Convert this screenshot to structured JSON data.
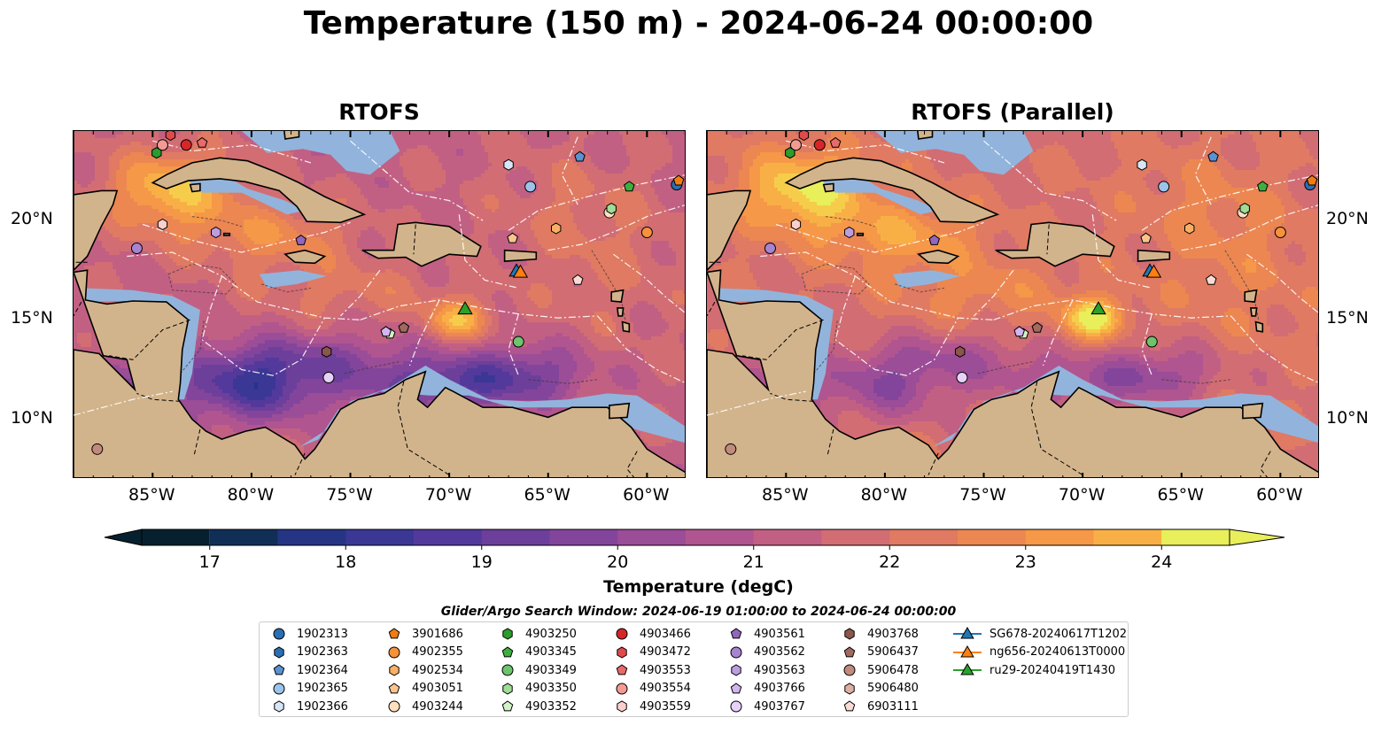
{
  "title": "Temperature (150 m) - 2024-06-24 00:00:00",
  "panels": [
    {
      "title": "RTOFS",
      "variant": "rtofs"
    },
    {
      "title": "RTOFS (Parallel)",
      "variant": "parallel"
    }
  ],
  "map": {
    "lon_range": [
      -89,
      -58
    ],
    "lat_range": [
      7,
      24.5
    ],
    "lon_ticks": [
      {
        "value": -85,
        "label": "85°W"
      },
      {
        "value": -80,
        "label": "80°W"
      },
      {
        "value": -75,
        "label": "75°W"
      },
      {
        "value": -70,
        "label": "70°W"
      },
      {
        "value": -65,
        "label": "65°W"
      },
      {
        "value": -60,
        "label": "60°W"
      }
    ],
    "lat_ticks": [
      {
        "value": 20,
        "label": "20°N"
      },
      {
        "value": 15,
        "label": "15°N"
      },
      {
        "value": 10,
        "label": "10°N"
      }
    ],
    "land_color": "#d2b48c",
    "shelf_color": "#92b4dc"
  },
  "colorbar": {
    "label": "Temperature (degC)",
    "min": 16.5,
    "max": 24.5,
    "step": 0.5,
    "tick_values": [
      17,
      18,
      19,
      20,
      21,
      22,
      23,
      24
    ],
    "tick_labels": [
      "17",
      "18",
      "19",
      "20",
      "21",
      "22",
      "23",
      "24"
    ],
    "colors": [
      "#07202f",
      "#112f56",
      "#253584",
      "#3a3795",
      "#53399b",
      "#6c3f9b",
      "#83459b",
      "#9b4d97",
      "#b0558f",
      "#c26083",
      "#d26d74",
      "#e07a62",
      "#ec8752",
      "#f59848",
      "#f8b046",
      "#f6cd4b",
      "#e8ef5a"
    ]
  },
  "search_window": "Glider/Argo Search Window: 2024-06-19 01:00:00 to 2024-06-24 00:00:00",
  "legend": [
    {
      "label": "1902313",
      "marker": "circle",
      "color": "#2a6fb2"
    },
    {
      "label": "1902363",
      "marker": "hexagon",
      "color": "#2a6fb2"
    },
    {
      "label": "1902364",
      "marker": "pentagon",
      "color": "#5a92d2"
    },
    {
      "label": "1902365",
      "marker": "circle",
      "color": "#9cc4ea"
    },
    {
      "label": "1902366",
      "marker": "hexagon",
      "color": "#d6e6f6"
    },
    {
      "label": "3901686",
      "marker": "pentagon",
      "color": "#f07d12"
    },
    {
      "label": "4902355",
      "marker": "circle",
      "color": "#f6923a"
    },
    {
      "label": "4902534",
      "marker": "hexagon",
      "color": "#f8b064"
    },
    {
      "label": "4903051",
      "marker": "pentagon",
      "color": "#fbc48e"
    },
    {
      "label": "4903244",
      "marker": "circle",
      "color": "#fde0c0"
    },
    {
      "label": "4903250",
      "marker": "hexagon",
      "color": "#2c9c2c"
    },
    {
      "label": "4903345",
      "marker": "pentagon",
      "color": "#3fae3f"
    },
    {
      "label": "4903349",
      "marker": "circle",
      "color": "#6cc46c"
    },
    {
      "label": "4903350",
      "marker": "hexagon",
      "color": "#a0dc96"
    },
    {
      "label": "4903352",
      "marker": "pentagon",
      "color": "#d2f2c8"
    },
    {
      "label": "4903466",
      "marker": "circle",
      "color": "#d62728"
    },
    {
      "label": "4903472",
      "marker": "hexagon",
      "color": "#e04a4a"
    },
    {
      "label": "4903553",
      "marker": "pentagon",
      "color": "#ea6a6a"
    },
    {
      "label": "4903554",
      "marker": "circle",
      "color": "#f49a94"
    },
    {
      "label": "4903559",
      "marker": "hexagon",
      "color": "#fbd0cc"
    },
    {
      "label": "4903561",
      "marker": "pentagon",
      "color": "#9266bd"
    },
    {
      "label": "4903562",
      "marker": "circle",
      "color": "#a784d0"
    },
    {
      "label": "4903563",
      "marker": "hexagon",
      "color": "#bc9ee0"
    },
    {
      "label": "4903766",
      "marker": "pentagon",
      "color": "#d2b6ee"
    },
    {
      "label": "4903767",
      "marker": "circle",
      "color": "#e6d2f8"
    },
    {
      "label": "4903768",
      "marker": "hexagon",
      "color": "#8c564b"
    },
    {
      "label": "5906437",
      "marker": "pentagon",
      "color": "#a06a5e"
    },
    {
      "label": "5906478",
      "marker": "circle",
      "color": "#c28a7c"
    },
    {
      "label": "5906480",
      "marker": "hexagon",
      "color": "#deb0a4"
    },
    {
      "label": "6903111",
      "marker": "pentagon",
      "color": "#f8dcd4"
    },
    {
      "label": "SG678-20240617T1202",
      "marker": "triangle-line",
      "color": "#1f77b4"
    },
    {
      "label": "ng656-20240613T0000",
      "marker": "triangle-line",
      "color": "#ff7f0e"
    },
    {
      "label": "ru29-20240419T1430",
      "marker": "triangle-line",
      "color": "#2ca02c"
    }
  ]
}
